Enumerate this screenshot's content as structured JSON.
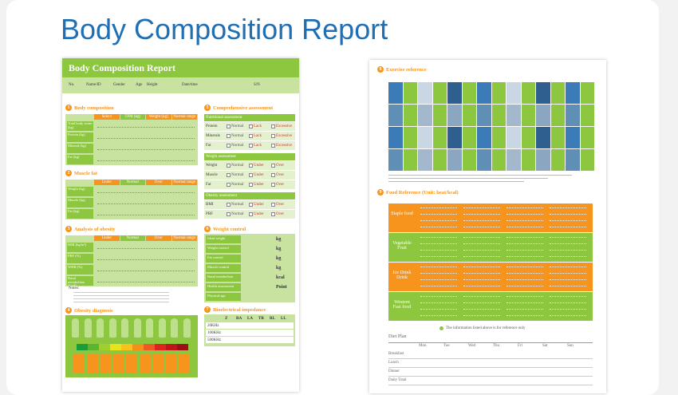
{
  "title": "Body Composition Report",
  "left_page": {
    "header": "Body Composition Report",
    "fields": [
      "No.",
      "Name/ID",
      "Gender",
      "Age",
      "Height",
      "Date/time",
      "S/N"
    ],
    "body_composition": {
      "number": "1",
      "title": "Body composition",
      "columns": [
        "Select",
        "TFM (kg)",
        "Weight (kg)",
        "Normal range"
      ],
      "rows": [
        "Total body water (kg)",
        "Protein (kg)",
        "Mineral (kg)",
        "Fat (kg)"
      ]
    },
    "muscle_fat": {
      "number": "2",
      "title": "Muscle fat",
      "columns": [
        "Under",
        "Normal",
        "Over",
        "Normal range"
      ],
      "rows": [
        "Weight (kg)",
        "Muscle (kg)",
        "Fat (kg)"
      ]
    },
    "obesity_analysis": {
      "number": "3",
      "title": "Analysis of obesity",
      "columns": [
        "Under",
        "Normal",
        "Over",
        "Normal range"
      ],
      "rows": [
        "BMI (kg/m²)",
        "PBF (%)",
        "WHR (%)",
        "Basal metabolism (kcal)"
      ]
    },
    "notes": "Notes:",
    "obesity_diagnosis": {
      "number": "4",
      "title": "Obesity diagnosis"
    },
    "assessment": {
      "number": "5",
      "title": "Comprehensive assessment",
      "groups": [
        {
          "name": "Nutritional assessment",
          "rows": [
            "Protein",
            "Minerals",
            "Fat"
          ],
          "options": [
            "Normal",
            "Lack",
            "Excessive"
          ]
        },
        {
          "name": "Weight assessment",
          "rows": [
            "Weight",
            "Muscle",
            "Fat"
          ],
          "options": [
            "Normal",
            "Under",
            "Over"
          ]
        },
        {
          "name": "Obesity assessment",
          "rows": [
            "BMI",
            "PBF"
          ],
          "options": [
            "Normal",
            "Under",
            "Over"
          ]
        }
      ]
    },
    "weight_control": {
      "number": "6",
      "title": "Weight control",
      "rows": [
        {
          "label": "Ideal weight",
          "unit": "kg"
        },
        {
          "label": "Weight control",
          "unit": "kg"
        },
        {
          "label": "Fat control",
          "unit": "kg"
        },
        {
          "label": "Muscle control",
          "unit": "kg"
        },
        {
          "label": "Basal metabolism",
          "unit": "kcal"
        },
        {
          "label": "Health assessment",
          "unit": "Point"
        },
        {
          "label": "Physical age",
          "unit": ""
        }
      ]
    },
    "impedance": {
      "number": "7",
      "title": "Bioelectrical impedance",
      "columns": [
        "Z",
        "RA",
        "LA",
        "TR",
        "RL",
        "LL"
      ],
      "rows": [
        "20KHz",
        "100KHz",
        "500KHz"
      ]
    }
  },
  "right_page": {
    "exercise": {
      "number": "8",
      "title": "Exercise reference"
    },
    "food": {
      "number": "9",
      "title": "Food Reference (Unit: heat/kcal)",
      "groups": [
        "Staple food",
        "Vegetable Fruit",
        "Ice Drink Drink",
        "Western Fast food"
      ]
    },
    "footnote": "The information listed above is for reference only",
    "diet_plan": {
      "title": "Diet Plan",
      "days": [
        "Mon",
        "Tue",
        "Wed",
        "Thu",
        "Fri",
        "Sat",
        "Sun"
      ],
      "meals": [
        "Breakfast",
        "Lunch",
        "Dinner",
        "Daily Total"
      ]
    }
  }
}
